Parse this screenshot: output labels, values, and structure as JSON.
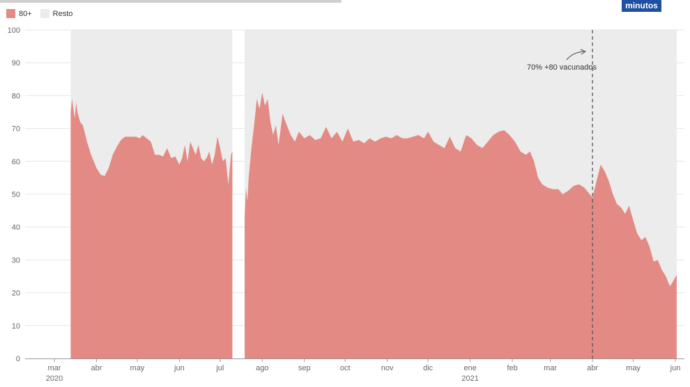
{
  "brand": {
    "logo_text": "minutos"
  },
  "legend": [
    {
      "label": "80+",
      "color": "#e38a84"
    },
    {
      "label": "Resto",
      "color": "#ececec"
    }
  ],
  "annotation": {
    "text": "70% +80 vacunados",
    "date": "2021-04-01"
  },
  "chart_data": {
    "type": "area",
    "stacking": "percent",
    "ylim": [
      0,
      100
    ],
    "y_ticks": [
      0,
      10,
      20,
      30,
      40,
      50,
      60,
      70,
      80,
      90,
      100
    ],
    "x_ticks": [
      {
        "label": "mar",
        "year": "2020",
        "date": "2020-03-01"
      },
      {
        "label": "abr",
        "year": "",
        "date": "2020-04-01"
      },
      {
        "label": "may",
        "year": "",
        "date": "2020-05-01"
      },
      {
        "label": "jun",
        "year": "",
        "date": "2020-06-01"
      },
      {
        "label": "jul",
        "year": "",
        "date": "2020-07-01"
      },
      {
        "label": "ago",
        "year": "",
        "date": "2020-08-01"
      },
      {
        "label": "sep",
        "year": "",
        "date": "2020-09-01"
      },
      {
        "label": "oct",
        "year": "",
        "date": "2020-10-01"
      },
      {
        "label": "nov",
        "year": "",
        "date": "2020-11-01"
      },
      {
        "label": "dic",
        "year": "",
        "date": "2020-12-01"
      },
      {
        "label": "ene",
        "year": "2021",
        "date": "2021-01-01"
      },
      {
        "label": "feb",
        "year": "",
        "date": "2021-02-01"
      },
      {
        "label": "mar",
        "year": "",
        "date": "2021-03-01"
      },
      {
        "label": "abr",
        "year": "",
        "date": "2021-04-01"
      },
      {
        "label": "may",
        "year": "",
        "date": "2021-05-01"
      },
      {
        "label": "jun",
        "year": "",
        "date": "2021-06-01"
      }
    ],
    "grid": true,
    "legend_position": "top-left",
    "series": [
      {
        "name": "80+",
        "color": "#e38a84",
        "segments": [
          {
            "points": [
              [
                "2020-03-13",
                75
              ],
              [
                "2020-03-14",
                79
              ],
              [
                "2020-03-15",
                76
              ],
              [
                "2020-03-16",
                73
              ],
              [
                "2020-03-17",
                78
              ],
              [
                "2020-03-18",
                75
              ],
              [
                "2020-03-20",
                72
              ],
              [
                "2020-03-22",
                71
              ],
              [
                "2020-03-25",
                66
              ],
              [
                "2020-03-28",
                62
              ],
              [
                "2020-04-01",
                58
              ],
              [
                "2020-04-04",
                56
              ],
              [
                "2020-04-07",
                55.5
              ],
              [
                "2020-04-10",
                58
              ],
              [
                "2020-04-13",
                62
              ],
              [
                "2020-04-16",
                64.5
              ],
              [
                "2020-04-19",
                66.5
              ],
              [
                "2020-04-22",
                67.5
              ],
              [
                "2020-04-26",
                67.5
              ],
              [
                "2020-04-30",
                67.5
              ],
              [
                "2020-05-03",
                67
              ],
              [
                "2020-05-05",
                68
              ],
              [
                "2020-05-08",
                67
              ],
              [
                "2020-05-11",
                66
              ],
              [
                "2020-05-14",
                62
              ],
              [
                "2020-05-17",
                62
              ],
              [
                "2020-05-20",
                61.5
              ],
              [
                "2020-05-23",
                64
              ],
              [
                "2020-05-26",
                61
              ],
              [
                "2020-05-29",
                61.5
              ],
              [
                "2020-06-01",
                59
              ],
              [
                "2020-06-03",
                61
              ],
              [
                "2020-06-05",
                65
              ],
              [
                "2020-06-07",
                60
              ],
              [
                "2020-06-09",
                66
              ],
              [
                "2020-06-11",
                64
              ],
              [
                "2020-06-13",
                62
              ],
              [
                "2020-06-15",
                65
              ],
              [
                "2020-06-17",
                61
              ],
              [
                "2020-06-19",
                60
              ],
              [
                "2020-06-21",
                61
              ],
              [
                "2020-06-23",
                63
              ],
              [
                "2020-06-25",
                59
              ],
              [
                "2020-06-27",
                62
              ],
              [
                "2020-06-29",
                67.5
              ],
              [
                "2020-07-01",
                64
              ],
              [
                "2020-07-03",
                60
              ],
              [
                "2020-07-05",
                61
              ],
              [
                "2020-07-07",
                53
              ],
              [
                "2020-07-09",
                62
              ],
              [
                "2020-07-10",
                63
              ]
            ]
          },
          {
            "points": [
              [
                "2020-07-19",
                43
              ],
              [
                "2020-07-20",
                52
              ],
              [
                "2020-07-21",
                48
              ],
              [
                "2020-07-22",
                55
              ],
              [
                "2020-07-24",
                64
              ],
              [
                "2020-07-26",
                71
              ],
              [
                "2020-07-28",
                79
              ],
              [
                "2020-07-30",
                76
              ],
              [
                "2020-08-01",
                81
              ],
              [
                "2020-08-03",
                77
              ],
              [
                "2020-08-05",
                79
              ],
              [
                "2020-08-07",
                72
              ],
              [
                "2020-08-09",
                68
              ],
              [
                "2020-08-11",
                71
              ],
              [
                "2020-08-13",
                65
              ],
              [
                "2020-08-16",
                74.5
              ],
              [
                "2020-08-19",
                71
              ],
              [
                "2020-08-22",
                68
              ],
              [
                "2020-08-25",
                66
              ],
              [
                "2020-08-28",
                69
              ],
              [
                "2020-09-01",
                67
              ],
              [
                "2020-09-05",
                68
              ],
              [
                "2020-09-09",
                66.5
              ],
              [
                "2020-09-13",
                67
              ],
              [
                "2020-09-17",
                70.5
              ],
              [
                "2020-09-21",
                67
              ],
              [
                "2020-09-25",
                69
              ],
              [
                "2020-09-29",
                66
              ],
              [
                "2020-10-03",
                70
              ],
              [
                "2020-10-07",
                66
              ],
              [
                "2020-10-11",
                66.5
              ],
              [
                "2020-10-15",
                65.5
              ],
              [
                "2020-10-19",
                67
              ],
              [
                "2020-10-23",
                66
              ],
              [
                "2020-10-27",
                67
              ],
              [
                "2020-10-31",
                67.5
              ],
              [
                "2020-11-04",
                67
              ],
              [
                "2020-11-08",
                68
              ],
              [
                "2020-11-12",
                67
              ],
              [
                "2020-11-16",
                67
              ],
              [
                "2020-11-20",
                67.5
              ],
              [
                "2020-11-24",
                68
              ],
              [
                "2020-11-28",
                67
              ],
              [
                "2020-12-01",
                69
              ],
              [
                "2020-12-05",
                66
              ],
              [
                "2020-12-09",
                65
              ],
              [
                "2020-12-13",
                64
              ],
              [
                "2020-12-17",
                67.5
              ],
              [
                "2020-12-21",
                64
              ],
              [
                "2020-12-25",
                63
              ],
              [
                "2020-12-29",
                68
              ],
              [
                "2021-01-02",
                67
              ],
              [
                "2021-01-06",
                65
              ],
              [
                "2021-01-10",
                64
              ],
              [
                "2021-01-14",
                66
              ],
              [
                "2021-01-18",
                68
              ],
              [
                "2021-01-22",
                69
              ],
              [
                "2021-01-26",
                69.5
              ],
              [
                "2021-01-30",
                68
              ],
              [
                "2021-02-03",
                66
              ],
              [
                "2021-02-07",
                63
              ],
              [
                "2021-02-11",
                62
              ],
              [
                "2021-02-14",
                63
              ],
              [
                "2021-02-17",
                60
              ],
              [
                "2021-02-20",
                55
              ],
              [
                "2021-02-23",
                53
              ],
              [
                "2021-02-27",
                52
              ],
              [
                "2021-03-03",
                51.5
              ],
              [
                "2021-03-07",
                51.5
              ],
              [
                "2021-03-10",
                50
              ],
              [
                "2021-03-14",
                51
              ],
              [
                "2021-03-18",
                52.5
              ],
              [
                "2021-03-22",
                53
              ],
              [
                "2021-03-26",
                52
              ],
              [
                "2021-03-30",
                50
              ],
              [
                "2021-04-01",
                49
              ],
              [
                "2021-04-04",
                54
              ],
              [
                "2021-04-07",
                59
              ],
              [
                "2021-04-10",
                57
              ],
              [
                "2021-04-13",
                54
              ],
              [
                "2021-04-16",
                50
              ],
              [
                "2021-04-19",
                47
              ],
              [
                "2021-04-22",
                46
              ],
              [
                "2021-04-25",
                44
              ],
              [
                "2021-04-28",
                46.5
              ],
              [
                "2021-05-01",
                42
              ],
              [
                "2021-05-04",
                38
              ],
              [
                "2021-05-07",
                36
              ],
              [
                "2021-05-10",
                37
              ],
              [
                "2021-05-13",
                34
              ],
              [
                "2021-05-16",
                29.5
              ],
              [
                "2021-05-19",
                30
              ],
              [
                "2021-05-22",
                27
              ],
              [
                "2021-05-25",
                25
              ],
              [
                "2021-05-28",
                22
              ],
              [
                "2021-05-31",
                24
              ],
              [
                "2021-06-02",
                25.5
              ]
            ]
          }
        ]
      },
      {
        "name": "Resto",
        "color": "#ececec",
        "segments": [
          {
            "start": "2020-03-13",
            "end": "2020-07-10"
          },
          {
            "start": "2020-07-19",
            "end": "2021-06-02"
          }
        ]
      }
    ]
  }
}
